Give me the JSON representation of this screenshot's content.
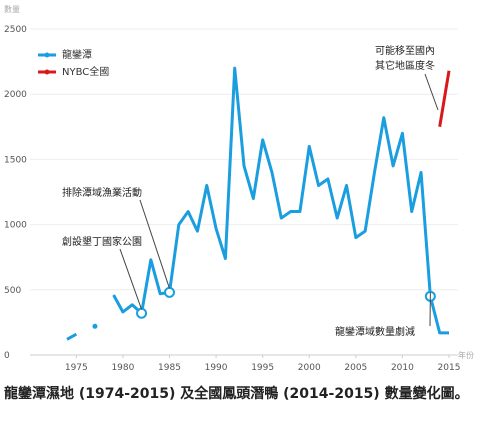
{
  "chart_data": {
    "type": "line",
    "y_label": "數量",
    "x_label": "年份",
    "x": [
      1974,
      1975,
      1976,
      1977,
      1978,
      1979,
      1980,
      1981,
      1982,
      1983,
      1984,
      1985,
      1986,
      1987,
      1988,
      1989,
      1990,
      1991,
      1992,
      1993,
      1994,
      1995,
      1996,
      1997,
      1998,
      1999,
      2000,
      2001,
      2002,
      2003,
      2004,
      2005,
      2006,
      2007,
      2008,
      2009,
      2010,
      2011,
      2012,
      2013,
      2014,
      2015
    ],
    "series": [
      {
        "name": "龍鑾潭",
        "color": "#1a9ee0",
        "values": [
          120,
          160,
          null,
          220,
          null,
          460,
          330,
          385,
          320,
          730,
          470,
          480,
          1000,
          1100,
          950,
          1300,
          970,
          740,
          2200,
          1450,
          1200,
          1650,
          1400,
          1050,
          1100,
          1100,
          1600,
          1300,
          1350,
          1050,
          1300,
          900,
          950,
          1400,
          1820,
          1450,
          1700,
          1100,
          1400,
          450,
          170,
          170
        ]
      },
      {
        "name": "NYBC全國",
        "color": "#d7191c",
        "values": [
          null,
          null,
          null,
          null,
          null,
          null,
          null,
          null,
          null,
          null,
          null,
          null,
          null,
          null,
          null,
          null,
          null,
          null,
          null,
          null,
          null,
          null,
          null,
          null,
          null,
          null,
          null,
          null,
          null,
          null,
          null,
          null,
          null,
          null,
          null,
          null,
          null,
          null,
          null,
          null,
          1750,
          2180
        ]
      }
    ],
    "xlim": [
      1970,
      2016
    ],
    "xticks": [
      1975,
      1980,
      1985,
      1990,
      1995,
      2000,
      2005,
      2010,
      2015
    ],
    "ylim": [
      0,
      2500
    ],
    "yticks": [
      0,
      500,
      1000,
      1500,
      2000,
      2500
    ],
    "grid": true,
    "annotations": [
      {
        "text": "創設墾丁國家公園",
        "year": 1982
      },
      {
        "text": "排除潭域漁業活動",
        "year": 1985
      },
      {
        "text": "龍鑾潭域數量劇減",
        "year": 2013
      },
      {
        "text": "可能移至國內",
        "year": 2014
      },
      {
        "text": "其它地區度冬",
        "year": 2014
      }
    ],
    "caption": "龍鑾潭濕地 (1974-2015) 及全國鳳頭潛鴨 (2014-2015) 數量變化圖。"
  }
}
